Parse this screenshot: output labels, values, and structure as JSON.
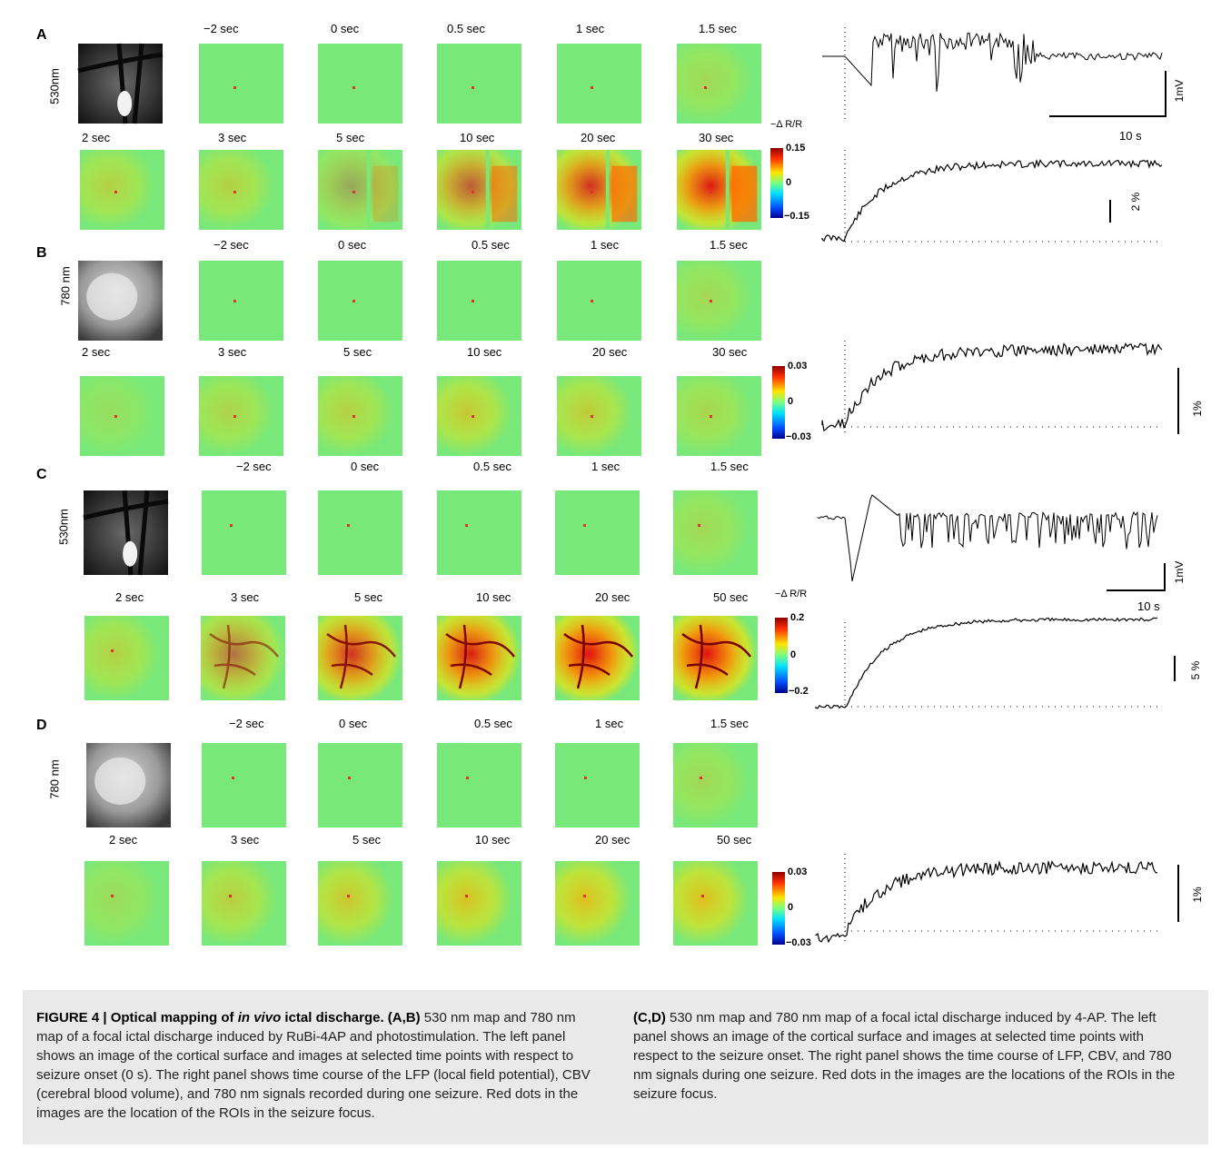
{
  "panels": [
    {
      "letter": "A",
      "wavelength": "530nm",
      "row1": [
        "−2  sec",
        "0  sec",
        "0.5  sec",
        "1  sec",
        "1.5  sec"
      ],
      "row2": [
        "2  sec",
        "3  sec",
        "5  sec",
        "10  sec",
        "20  sec",
        "30  sec"
      ],
      "colorbar": {
        "max": "0.15",
        "mid": "0",
        "min": "−0.15",
        "title": "−Δ R/R"
      },
      "traces": {
        "lfp_scale_v": "1mV",
        "lfp_scale_t": "10 s",
        "cbv_scale": "2 %"
      }
    },
    {
      "letter": "B",
      "wavelength": "780 nm",
      "row1": [
        "−2  sec",
        "0  sec",
        "0.5  sec",
        "1  sec",
        "1.5  sec"
      ],
      "row2": [
        "2  sec",
        "3  sec",
        "5  sec",
        "10  sec",
        "20  sec",
        "30  sec"
      ],
      "colorbar": {
        "max": "0.03",
        "mid": "0",
        "min": "−0.03"
      },
      "traces": {
        "sig_scale": "1%"
      }
    },
    {
      "letter": "C",
      "wavelength": "530nm",
      "row1": [
        "−2  sec",
        "0  sec",
        "0.5  sec",
        "1  sec",
        "1.5  sec"
      ],
      "row2": [
        "2  sec",
        "3  sec",
        "5  sec",
        "10  sec",
        "20  sec",
        "50  sec"
      ],
      "colorbar": {
        "max": "0.2",
        "mid": "0",
        "min": "−0.2",
        "title": "−Δ R/R"
      },
      "traces": {
        "lfp_scale_v": "1mV",
        "lfp_scale_t": "10 s",
        "cbv_scale": "5 %"
      }
    },
    {
      "letter": "D",
      "wavelength": "780 nm",
      "row1": [
        "−2  sec",
        "0  sec",
        "0.5  sec",
        "1  sec",
        "1.5  sec"
      ],
      "row2": [
        "2  sec",
        "3  sec",
        "5  sec",
        "10  sec",
        "20  sec",
        "50  sec"
      ],
      "colorbar": {
        "max": "0.03",
        "mid": "0",
        "min": "−0.03"
      },
      "traces": {
        "sig_scale": "1%"
      }
    }
  ],
  "colors": {
    "map_base": "#78e87a",
    "hot": "#d01818",
    "caption_bg": "#e9e9e9"
  },
  "caption": {
    "label": "FIGURE 4 | Optical mapping of ",
    "label_italic": "in vivo",
    "label_end": " ictal discharge.",
    "p1_bold": "(A,B)",
    "p1": " 530 nm map and 780 nm map of a focal ictal discharge induced by RuBi-4AP and photostimulation. The left panel shows an image of the cortical surface and images at selected time points with respect to seizure onset (0 s). The right panel shows time course of the LFP (local field potential), CBV (cerebral blood volume), and 780 nm signals recorded during one seizure. Red dots in the images are the location of the ROIs in the seizure focus.",
    "p2_bold": "(C,D)",
    "p2": " 530 nm map and 780 nm map of a focal ictal discharge induced by 4-AP. The left panel shows an image of the cortical surface and images at selected time points with respect to the seizure onset. The right panel shows the time course of LFP, CBV, and 780 nm signals during one seizure. Red dots in the images are the locations of the ROIs in the seizure focus."
  }
}
